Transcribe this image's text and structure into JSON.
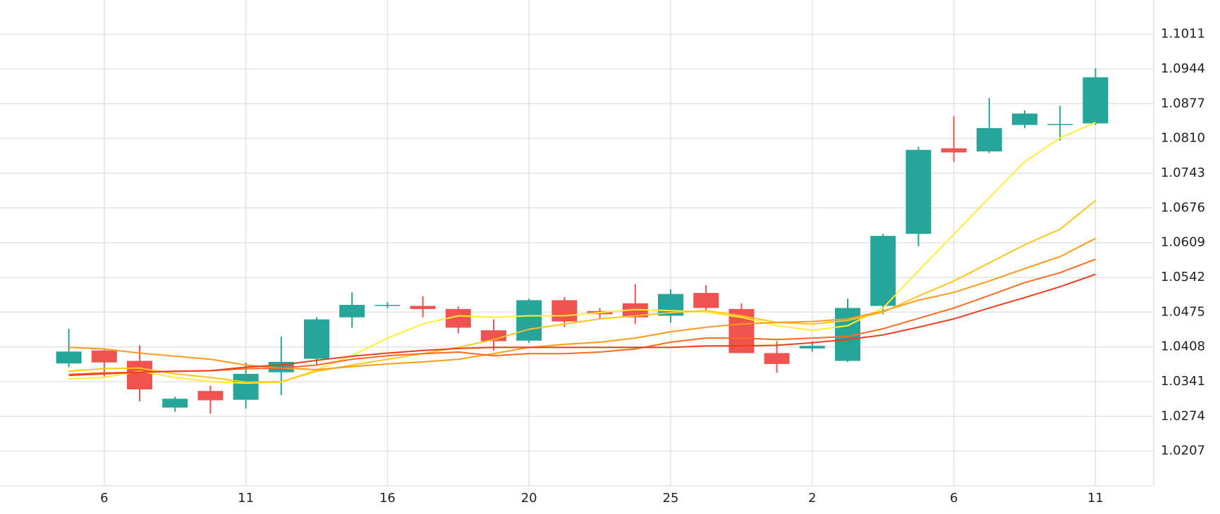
{
  "chart_data": {
    "type": "candlestick",
    "categories": [
      null,
      "6",
      null,
      null,
      null,
      "11",
      null,
      null,
      null,
      "16",
      null,
      null,
      null,
      "20",
      null,
      null,
      null,
      "25",
      null,
      null,
      null,
      "2",
      null,
      null,
      null,
      "6",
      null,
      null,
      null,
      "11"
    ],
    "open": [
      1.0376,
      1.0401,
      1.0381,
      1.0291,
      1.0323,
      1.0306,
      1.0359,
      1.0385,
      1.0465,
      1.0487,
      1.0487,
      1.0481,
      1.044,
      1.042,
      1.0498,
      1.0477,
      1.0492,
      1.0468,
      1.0512,
      1.0481,
      1.0396,
      1.0405,
      1.0381,
      1.0487,
      1.0626,
      1.0791,
      1.0785,
      1.0836,
      1.0836,
      1.0839
    ],
    "high": [
      1.0443,
      1.0405,
      1.0411,
      1.0312,
      1.0333,
      1.0378,
      1.0428,
      1.0465,
      1.0513,
      1.0494,
      1.0506,
      1.0486,
      1.0461,
      1.0501,
      1.0504,
      1.0483,
      1.0529,
      1.0519,
      1.0527,
      1.0492,
      1.0419,
      1.0419,
      1.0501,
      1.0626,
      1.0794,
      1.0853,
      1.0888,
      1.0864,
      1.0873,
      1.0945
    ],
    "low": [
      1.0369,
      1.035,
      1.0303,
      1.0283,
      1.0279,
      1.0289,
      1.0315,
      1.0373,
      1.0445,
      1.0483,
      1.0465,
      1.0434,
      1.0401,
      1.0416,
      1.0446,
      1.0463,
      1.0452,
      1.0455,
      1.0474,
      1.0396,
      1.0358,
      1.0399,
      1.0379,
      1.0471,
      1.0602,
      1.0765,
      1.0782,
      1.083,
      1.0806,
      1.0836
    ],
    "close": [
      1.0399,
      1.0378,
      1.0326,
      1.0308,
      1.0305,
      1.0356,
      1.0379,
      1.0461,
      1.0489,
      1.0489,
      1.0481,
      1.0445,
      1.0419,
      1.0498,
      1.0457,
      1.0471,
      1.0465,
      1.051,
      1.0483,
      1.0396,
      1.0375,
      1.041,
      1.0483,
      1.0622,
      1.0788,
      1.0783,
      1.083,
      1.0858,
      1.0838,
      1.0928
    ],
    "up_color": "#26a69a",
    "down_color": "#ef5350",
    "series": [
      {
        "color": "#ffee33",
        "values": [
          1.0346,
          1.0349,
          1.0361,
          1.0349,
          1.0341,
          1.0338,
          1.034,
          1.0364,
          1.0391,
          1.0425,
          1.0452,
          1.0468,
          1.0465,
          1.0468,
          1.0468,
          1.0474,
          1.048,
          1.0478,
          1.0475,
          1.0465,
          1.0449,
          1.044,
          1.0449,
          1.0483,
          1.0555,
          1.0625,
          1.0696,
          1.0765,
          1.0811,
          1.0841
        ]
      },
      {
        "color": "#ffc41a",
        "values": [
          1.0361,
          1.0366,
          1.0367,
          1.0356,
          1.0349,
          1.034,
          1.0341,
          1.0361,
          1.0373,
          1.0384,
          1.0395,
          1.0407,
          1.0422,
          1.0442,
          1.0452,
          1.0462,
          1.0468,
          1.0474,
          1.0478,
          1.0468,
          1.0455,
          1.0452,
          1.0459,
          1.0475,
          1.0506,
          1.0535,
          1.057,
          1.0605,
          1.0635,
          1.069
        ]
      },
      {
        "color": "#ff9a1a",
        "values": [
          1.0407,
          1.0404,
          1.0396,
          1.039,
          1.0384,
          1.0373,
          1.0367,
          1.0364,
          1.037,
          1.0375,
          1.0379,
          1.0384,
          1.0395,
          1.0407,
          1.0413,
          1.0417,
          1.0425,
          1.0437,
          1.0446,
          1.0452,
          1.0455,
          1.0457,
          1.0462,
          1.0477,
          1.0498,
          1.0513,
          1.0535,
          1.0559,
          1.0582,
          1.0617
        ]
      },
      {
        "color": "#ff6a1f",
        "values": [
          1.0355,
          1.0358,
          1.0359,
          1.0361,
          1.0362,
          1.0366,
          1.0367,
          1.0373,
          1.0384,
          1.0391,
          1.0395,
          1.0398,
          1.0391,
          1.0395,
          1.0395,
          1.0398,
          1.0404,
          1.0417,
          1.0425,
          1.0425,
          1.0422,
          1.0425,
          1.0428,
          1.0443,
          1.0463,
          1.0483,
          1.0507,
          1.0532,
          1.0551,
          1.0577
        ]
      },
      {
        "color": "#f03c1a",
        "values": [
          1.0353,
          1.0356,
          1.0359,
          1.0361,
          1.0362,
          1.0369,
          1.0373,
          1.0382,
          1.039,
          1.0396,
          1.0401,
          1.0405,
          1.0407,
          1.0407,
          1.0407,
          1.0407,
          1.0407,
          1.0407,
          1.041,
          1.041,
          1.0411,
          1.0416,
          1.0422,
          1.0431,
          1.0446,
          1.0462,
          1.0483,
          1.0503,
          1.0524,
          1.0548
        ]
      }
    ],
    "ylim": [
      1.014,
      1.1077
    ],
    "yticks": [
      1.0207,
      1.0274,
      1.0341,
      1.0408,
      1.0475,
      1.0542,
      1.0609,
      1.0676,
      1.0743,
      {
        "value": 1.081,
        "label": "1.0810"
      },
      1.0877,
      1.0944,
      1.1011
    ],
    "grid": true
  }
}
